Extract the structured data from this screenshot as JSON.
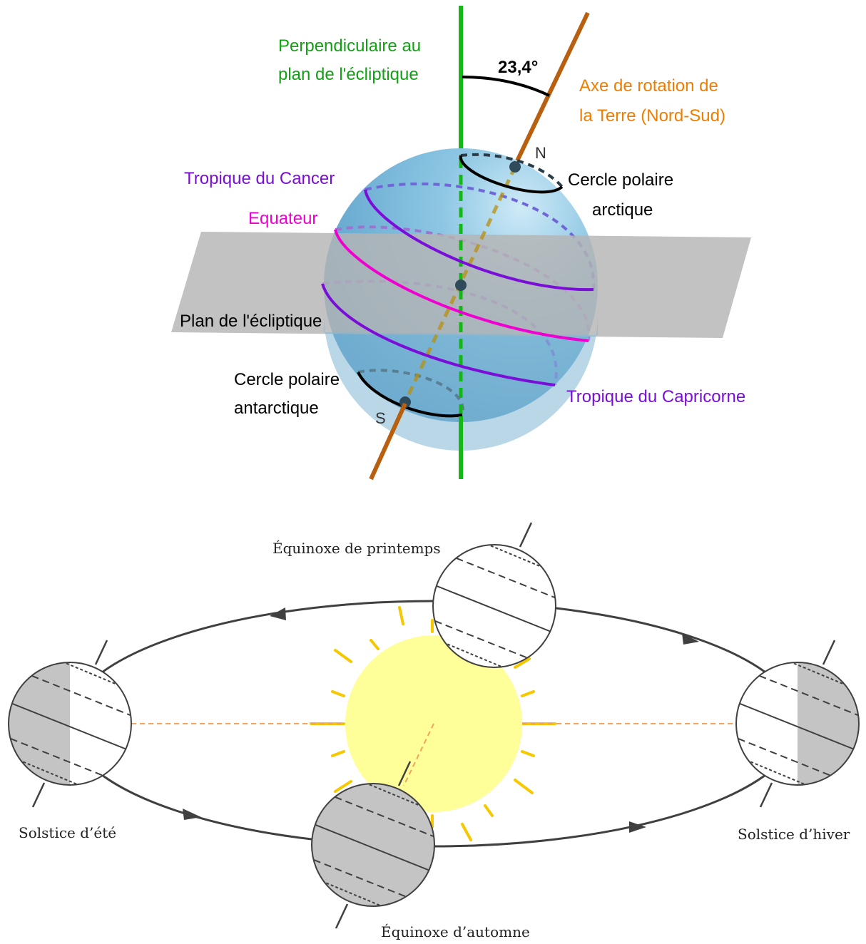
{
  "upper_diagram": {
    "angle_label": "23,4°",
    "perpendicular_label": [
      "Perpendiculaire au",
      "plan de l'écliptique"
    ],
    "axis_label": [
      "Axe de rotation de",
      "la Terre (Nord-Sud)"
    ],
    "north_label": "N",
    "south_label": "S",
    "arctic_label": [
      "Cercle polaire",
      "arctique"
    ],
    "antarctic_label": [
      "Cercle polaire",
      "antarctique"
    ],
    "cancer_label": "Tropique du Cancer",
    "equator_label": "Equateur",
    "capricorn_label": "Tropique du Capricorne",
    "ecliptic_plane_label": "Plan de l'écliptique",
    "colors": {
      "perpendicular": "#14b814",
      "axis": "#b8600f",
      "axis_text": "#f07d00",
      "tropic": "#7a0ed8",
      "equator": "#f000d0",
      "globe": "#6fb2d6",
      "plane": "#b4b4b4"
    }
  },
  "lower_diagram": {
    "spring_label": "Équinoxe de printemps",
    "autumn_label": "Équinoxe d’automne",
    "summer_label": "Solstice d’été",
    "winter_label": "Solstice d’hiver",
    "colors": {
      "sun": "#ffff99",
      "rays": "#f5c800",
      "shadow": "#c4c4c4",
      "dotted_line": "#f4a260",
      "orbit": "#404040"
    }
  }
}
